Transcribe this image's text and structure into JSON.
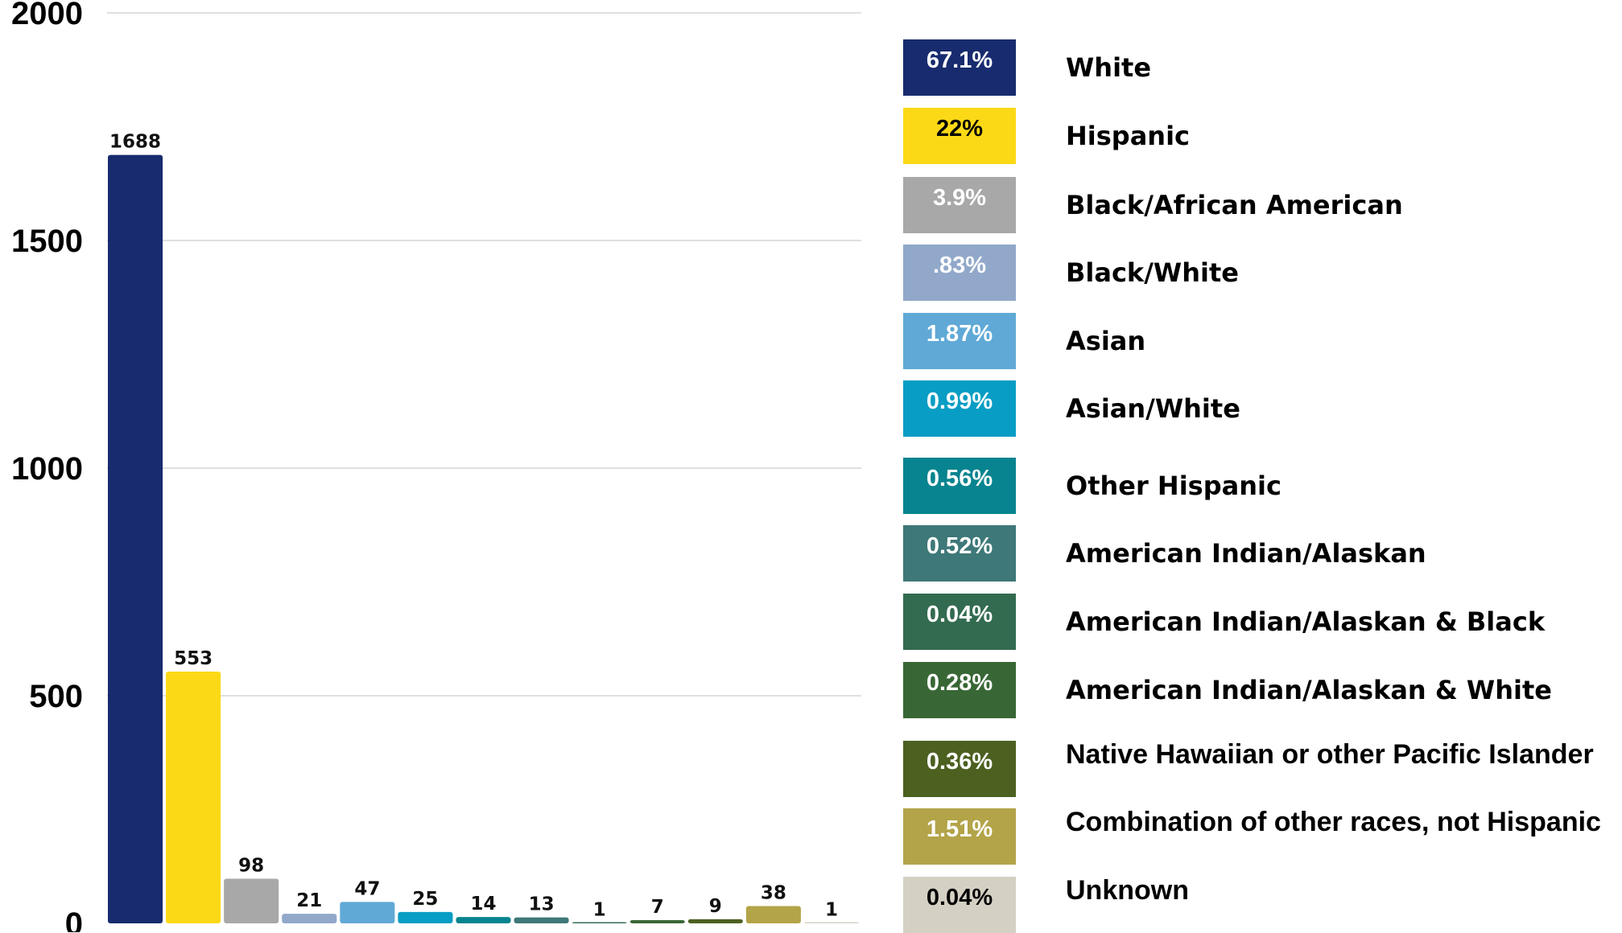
{
  "chart_data": {
    "type": "bar",
    "ylim": [
      0,
      2000
    ],
    "yticks": [
      0,
      500,
      1000,
      1500,
      2000
    ],
    "grid": true,
    "legend_position": "right",
    "categories": [
      "White",
      "Hispanic",
      "Black/African American",
      "Black/White",
      "Asian",
      "Asian/White",
      "Other Hispanic",
      "American Indian/Alaskan",
      "American Indian/Alaskan & Black",
      "American Indian/Alaskan & White",
      "Native Hawaiian or other Pacific Islander",
      "Combination of other races, not Hispanic",
      "Unknown"
    ],
    "values": [
      1688,
      553,
      98,
      21,
      47,
      25,
      14,
      13,
      1,
      7,
      9,
      38,
      1
    ],
    "percentages": [
      "67.1%",
      "22%",
      "3.9%",
      ".83%",
      "1.87%",
      "0.99%",
      "0.56%",
      "0.52%",
      "0.04%",
      "0.28%",
      "0.36%",
      "1.51%",
      "0.04%"
    ],
    "colors": [
      "#172B6E",
      "#FCD916",
      "#A8A8A8",
      "#91A8CA",
      "#60A9D6",
      "#089DC4",
      "#07848F",
      "#3E7878",
      "#336B50",
      "#386735",
      "#4C6020",
      "#B3A449",
      "#D5D0C4"
    ],
    "pct_text_colors": [
      "#FFFFFF",
      "#000000",
      "#FFFFFF",
      "#FFFFFF",
      "#FFFFFF",
      "#FFFFFF",
      "#FFFFFF",
      "#FFFFFF",
      "#FFFFFF",
      "#FFFFFF",
      "#FFFFFF",
      "#FFFFFF",
      "#000000"
    ]
  }
}
